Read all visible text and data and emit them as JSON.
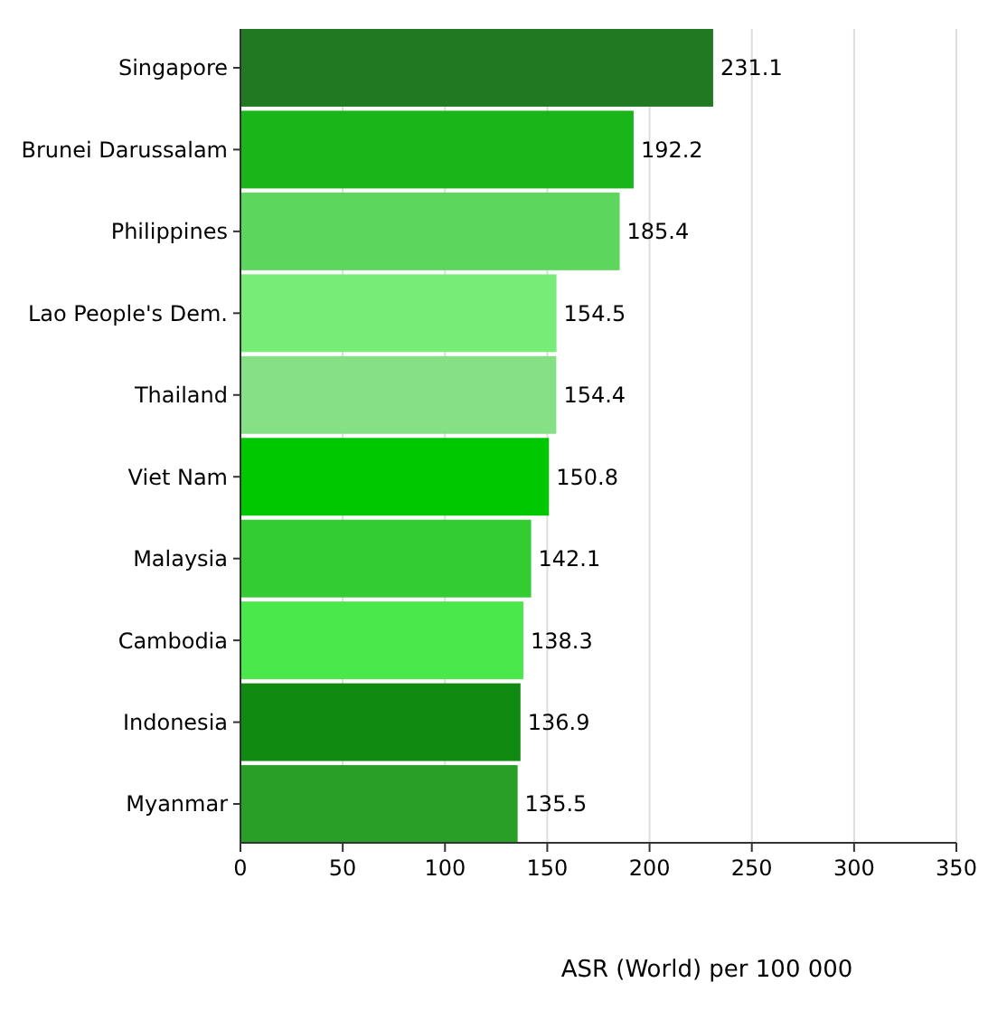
{
  "chart_data": {
    "type": "bar",
    "orientation": "horizontal",
    "xlabel": "ASR (World) per 100 000",
    "categories": [
      "Singapore",
      "Brunei Darussalam",
      "Philippines",
      "Lao People's Dem.",
      "Thailand",
      "Viet Nam",
      "Malaysia",
      "Cambodia",
      "Indonesia",
      "Myanmar"
    ],
    "values": [
      231.1,
      192.2,
      185.4,
      154.5,
      154.4,
      150.8,
      142.1,
      138.3,
      136.9,
      135.5
    ],
    "colors": [
      "#217a21",
      "#19b519",
      "#5cd65c",
      "#77ec77",
      "#86e086",
      "#00c800",
      "#33cc33",
      "#4ae84a",
      "#108a10",
      "#28a028"
    ],
    "xlim": [
      0,
      350
    ],
    "xticks": [
      0,
      50,
      100,
      150,
      200,
      250,
      300,
      350
    ],
    "grid": "x",
    "data_labels": true
  }
}
